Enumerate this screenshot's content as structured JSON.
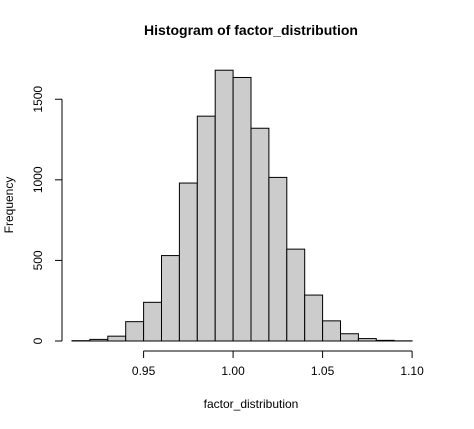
{
  "chart_data": {
    "type": "bar",
    "title": "Histogram of factor_distribution",
    "xlabel": "factor_distribution",
    "ylabel": "Frequency",
    "bar_fill": "#cccccc",
    "bar_stroke": "#000000",
    "bin_width": 0.01,
    "bins": [
      {
        "start": 0.91,
        "end": 0.92,
        "count": 2
      },
      {
        "start": 0.92,
        "end": 0.93,
        "count": 10
      },
      {
        "start": 0.93,
        "end": 0.94,
        "count": 30
      },
      {
        "start": 0.94,
        "end": 0.95,
        "count": 120
      },
      {
        "start": 0.95,
        "end": 0.96,
        "count": 240
      },
      {
        "start": 0.96,
        "end": 0.97,
        "count": 530
      },
      {
        "start": 0.97,
        "end": 0.98,
        "count": 980
      },
      {
        "start": 0.98,
        "end": 0.99,
        "count": 1395
      },
      {
        "start": 0.99,
        "end": 1.0,
        "count": 1680
      },
      {
        "start": 1.0,
        "end": 1.01,
        "count": 1635
      },
      {
        "start": 1.01,
        "end": 1.02,
        "count": 1320
      },
      {
        "start": 1.02,
        "end": 1.03,
        "count": 1015
      },
      {
        "start": 1.03,
        "end": 1.04,
        "count": 570
      },
      {
        "start": 1.04,
        "end": 1.05,
        "count": 285
      },
      {
        "start": 1.05,
        "end": 1.06,
        "count": 125
      },
      {
        "start": 1.06,
        "end": 1.07,
        "count": 45
      },
      {
        "start": 1.07,
        "end": 1.08,
        "count": 15
      },
      {
        "start": 1.08,
        "end": 1.09,
        "count": 4
      },
      {
        "start": 1.09,
        "end": 1.1,
        "count": 1
      }
    ],
    "xlim": [
      0.91,
      1.11
    ],
    "ylim": [
      0,
      1700
    ],
    "x_ticks": [
      0.95,
      1.0,
      1.05,
      1.1
    ],
    "x_tick_labels": [
      "0.95",
      "1.00",
      "1.05",
      "1.10"
    ],
    "y_ticks": [
      0,
      500,
      1000,
      1500
    ],
    "y_tick_labels": [
      "0",
      "500",
      "1000",
      "1500"
    ],
    "grid": false,
    "legend": "none"
  }
}
